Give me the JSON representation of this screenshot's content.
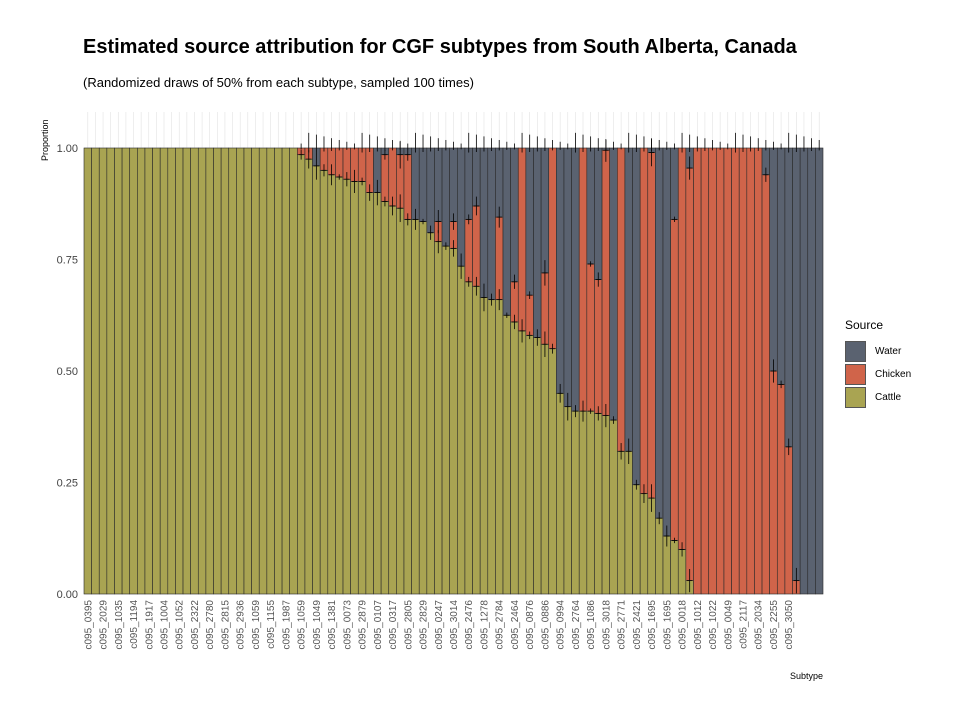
{
  "chart_data": {
    "type": "bar",
    "stacked": true,
    "title": "Estimated source attribution for CGF subtypes from South Alberta, Canada",
    "subtitle": "(Randomized draws of 50% from each subtype, sampled 100 times)",
    "xlabel": "Subtype",
    "ylabel": "Proportion",
    "ylim": [
      0,
      1
    ],
    "yticks": [
      "0.00",
      "0.25",
      "0.50",
      "0.75",
      "1.00"
    ],
    "x_tick_labels": [
      "c095_0395",
      "c095_2029",
      "c095_1035",
      "c095_1194",
      "c095_1917",
      "c095_1004",
      "c095_1052",
      "c095_2322",
      "c095_2780",
      "c095_2815",
      "c095_2936",
      "c095_1059",
      "c095_1155",
      "c095_1987",
      "c095_1059",
      "c095_1049",
      "c095_1381",
      "c095_0073",
      "c095_2879",
      "c095_0107",
      "c095_0317",
      "c095_2805",
      "c095_2829",
      "c095_0247",
      "c095_3014",
      "c095_2476",
      "c095_1278",
      "c095_2784",
      "c095_2464",
      "c095_0876",
      "c095_0886",
      "c095_0994",
      "c095_2764",
      "c095_1086",
      "c095_3018",
      "c095_2771",
      "c095_2421",
      "c095_1695",
      "c095_1695",
      "c095_0018",
      "c095_1012",
      "c095_1022",
      "c095_0049",
      "c095_2117",
      "c095_2034",
      "c095_2255",
      "c095_3050"
    ],
    "legend": {
      "title": "Source",
      "entries": [
        "Water",
        "Chicken",
        "Cattle"
      ],
      "placement": "right"
    },
    "colors": {
      "Water": "#5a6270",
      "Chicken": "#d0644a",
      "Cattle": "#a9a452"
    },
    "grid": true,
    "series_note": "stack order bottom-to-top: Cattle, Chicken, Water",
    "bars": [
      {
        "cattle": 1.0,
        "chicken": 0.0,
        "water": 0.0
      },
      {
        "cattle": 1.0,
        "chicken": 0.0,
        "water": 0.0
      },
      {
        "cattle": 1.0,
        "chicken": 0.0,
        "water": 0.0
      },
      {
        "cattle": 1.0,
        "chicken": 0.0,
        "water": 0.0
      },
      {
        "cattle": 1.0,
        "chicken": 0.0,
        "water": 0.0
      },
      {
        "cattle": 1.0,
        "chicken": 0.0,
        "water": 0.0
      },
      {
        "cattle": 1.0,
        "chicken": 0.0,
        "water": 0.0
      },
      {
        "cattle": 1.0,
        "chicken": 0.0,
        "water": 0.0
      },
      {
        "cattle": 1.0,
        "chicken": 0.0,
        "water": 0.0
      },
      {
        "cattle": 1.0,
        "chicken": 0.0,
        "water": 0.0
      },
      {
        "cattle": 1.0,
        "chicken": 0.0,
        "water": 0.0
      },
      {
        "cattle": 1.0,
        "chicken": 0.0,
        "water": 0.0
      },
      {
        "cattle": 1.0,
        "chicken": 0.0,
        "water": 0.0
      },
      {
        "cattle": 1.0,
        "chicken": 0.0,
        "water": 0.0
      },
      {
        "cattle": 1.0,
        "chicken": 0.0,
        "water": 0.0
      },
      {
        "cattle": 1.0,
        "chicken": 0.0,
        "water": 0.0
      },
      {
        "cattle": 1.0,
        "chicken": 0.0,
        "water": 0.0
      },
      {
        "cattle": 1.0,
        "chicken": 0.0,
        "water": 0.0
      },
      {
        "cattle": 1.0,
        "chicken": 0.0,
        "water": 0.0
      },
      {
        "cattle": 1.0,
        "chicken": 0.0,
        "water": 0.0
      },
      {
        "cattle": 1.0,
        "chicken": 0.0,
        "water": 0.0
      },
      {
        "cattle": 1.0,
        "chicken": 0.0,
        "water": 0.0
      },
      {
        "cattle": 1.0,
        "chicken": 0.0,
        "water": 0.0
      },
      {
        "cattle": 1.0,
        "chicken": 0.0,
        "water": 0.0
      },
      {
        "cattle": 1.0,
        "chicken": 0.0,
        "water": 0.0
      },
      {
        "cattle": 1.0,
        "chicken": 0.0,
        "water": 0.0
      },
      {
        "cattle": 1.0,
        "chicken": 0.0,
        "water": 0.0
      },
      {
        "cattle": 1.0,
        "chicken": 0.0,
        "water": 0.0
      },
      {
        "cattle": 0.985,
        "chicken": 0.015,
        "water": 0.0
      },
      {
        "cattle": 0.975,
        "chicken": 0.025,
        "water": 0.0
      },
      {
        "cattle": 0.96,
        "chicken": 0.0,
        "water": 0.04
      },
      {
        "cattle": 0.95,
        "chicken": 0.05,
        "water": 0.0
      },
      {
        "cattle": 0.94,
        "chicken": 0.06,
        "water": 0.0
      },
      {
        "cattle": 0.935,
        "chicken": 0.065,
        "water": 0.0
      },
      {
        "cattle": 0.93,
        "chicken": 0.07,
        "water": 0.0
      },
      {
        "cattle": 0.925,
        "chicken": 0.075,
        "water": 0.0
      },
      {
        "cattle": 0.925,
        "chicken": 0.075,
        "water": 0.0
      },
      {
        "cattle": 0.9,
        "chicken": 0.1,
        "water": 0.0
      },
      {
        "cattle": 0.9,
        "chicken": 0.0,
        "water": 0.1
      },
      {
        "cattle": 0.88,
        "chicken": 0.105,
        "water": 0.015
      },
      {
        "cattle": 0.87,
        "chicken": 0.13,
        "water": 0.0
      },
      {
        "cattle": 0.865,
        "chicken": 0.12,
        "water": 0.015
      },
      {
        "cattle": 0.84,
        "chicken": 0.145,
        "water": 0.015
      },
      {
        "cattle": 0.84,
        "chicken": 0.0,
        "water": 0.16
      },
      {
        "cattle": 0.835,
        "chicken": 0.0,
        "water": 0.165
      },
      {
        "cattle": 0.81,
        "chicken": 0.0,
        "water": 0.19
      },
      {
        "cattle": 0.79,
        "chicken": 0.045,
        "water": 0.165
      },
      {
        "cattle": 0.78,
        "chicken": 0.0,
        "water": 0.22
      },
      {
        "cattle": 0.775,
        "chicken": 0.06,
        "water": 0.165
      },
      {
        "cattle": 0.735,
        "chicken": 0.0,
        "water": 0.265
      },
      {
        "cattle": 0.7,
        "chicken": 0.14,
        "water": 0.16
      },
      {
        "cattle": 0.69,
        "chicken": 0.18,
        "water": 0.13
      },
      {
        "cattle": 0.665,
        "chicken": 0.0,
        "water": 0.335
      },
      {
        "cattle": 0.66,
        "chicken": 0.0,
        "water": 0.34
      },
      {
        "cattle": 0.66,
        "chicken": 0.185,
        "water": 0.155
      },
      {
        "cattle": 0.625,
        "chicken": 0.0,
        "water": 0.375
      },
      {
        "cattle": 0.61,
        "chicken": 0.09,
        "water": 0.3
      },
      {
        "cattle": 0.59,
        "chicken": 0.41,
        "water": 0.0
      },
      {
        "cattle": 0.58,
        "chicken": 0.09,
        "water": 0.33
      },
      {
        "cattle": 0.575,
        "chicken": 0.0,
        "water": 0.425
      },
      {
        "cattle": 0.56,
        "chicken": 0.16,
        "water": 0.28
      },
      {
        "cattle": 0.55,
        "chicken": 0.45,
        "water": 0.0
      },
      {
        "cattle": 0.45,
        "chicken": 0.0,
        "water": 0.55
      },
      {
        "cattle": 0.42,
        "chicken": 0.0,
        "water": 0.58
      },
      {
        "cattle": 0.41,
        "chicken": 0.0,
        "water": 0.59
      },
      {
        "cattle": 0.41,
        "chicken": 0.59,
        "water": 0.0
      },
      {
        "cattle": 0.41,
        "chicken": 0.33,
        "water": 0.26
      },
      {
        "cattle": 0.405,
        "chicken": 0.3,
        "water": 0.295
      },
      {
        "cattle": 0.4,
        "chicken": 0.595,
        "water": 0.005
      },
      {
        "cattle": 0.39,
        "chicken": 0.0,
        "water": 0.61
      },
      {
        "cattle": 0.32,
        "chicken": 0.68,
        "water": 0.0
      },
      {
        "cattle": 0.32,
        "chicken": 0.0,
        "water": 0.68
      },
      {
        "cattle": 0.245,
        "chicken": 0.0,
        "water": 0.755
      },
      {
        "cattle": 0.225,
        "chicken": 0.775,
        "water": 0.0
      },
      {
        "cattle": 0.215,
        "chicken": 0.775,
        "water": 0.01
      },
      {
        "cattle": 0.17,
        "chicken": 0.0,
        "water": 0.83
      },
      {
        "cattle": 0.13,
        "chicken": 0.0,
        "water": 0.87
      },
      {
        "cattle": 0.12,
        "chicken": 0.72,
        "water": 0.16
      },
      {
        "cattle": 0.1,
        "chicken": 0.9,
        "water": 0.0
      },
      {
        "cattle": 0.03,
        "chicken": 0.925,
        "water": 0.045
      },
      {
        "cattle": 0.0,
        "chicken": 1.0,
        "water": 0.0
      },
      {
        "cattle": 0.0,
        "chicken": 1.0,
        "water": 0.0
      },
      {
        "cattle": 0.0,
        "chicken": 1.0,
        "water": 0.0
      },
      {
        "cattle": 0.0,
        "chicken": 1.0,
        "water": 0.0
      },
      {
        "cattle": 0.0,
        "chicken": 1.0,
        "water": 0.0
      },
      {
        "cattle": 0.0,
        "chicken": 1.0,
        "water": 0.0
      },
      {
        "cattle": 0.0,
        "chicken": 1.0,
        "water": 0.0
      },
      {
        "cattle": 0.0,
        "chicken": 1.0,
        "water": 0.0
      },
      {
        "cattle": 0.0,
        "chicken": 1.0,
        "water": 0.0
      },
      {
        "cattle": 0.0,
        "chicken": 0.94,
        "water": 0.06
      },
      {
        "cattle": 0.0,
        "chicken": 0.5,
        "water": 0.5
      },
      {
        "cattle": 0.0,
        "chicken": 0.47,
        "water": 0.53
      },
      {
        "cattle": 0.0,
        "chicken": 0.33,
        "water": 0.67
      },
      {
        "cattle": 0.0,
        "chicken": 0.03,
        "water": 0.97
      },
      {
        "cattle": 0.0,
        "chicken": 0.0,
        "water": 1.0
      },
      {
        "cattle": 0.0,
        "chicken": 0.0,
        "water": 1.0
      },
      {
        "cattle": 0.0,
        "chicken": 0.0,
        "water": 1.0
      }
    ]
  }
}
